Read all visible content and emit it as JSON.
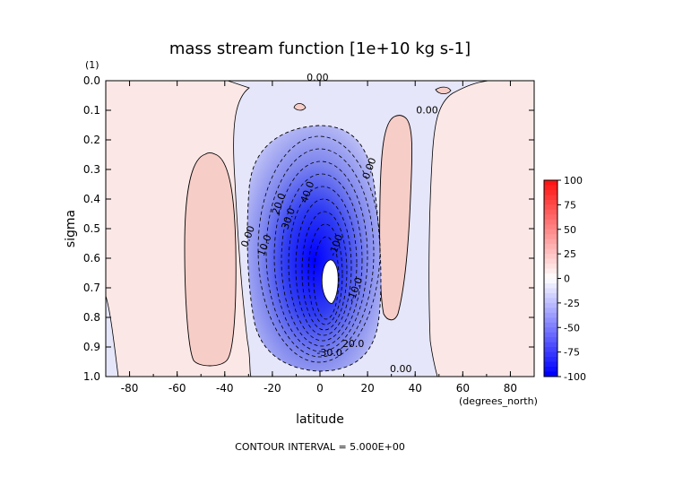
{
  "chart_data": {
    "type": "contour",
    "title": "mass stream function [1e+10 kg s-1]",
    "xlabel": "latitude",
    "xunits": "(degrees_north)",
    "ylabel": "sigma",
    "yunits": "(1)",
    "footer": "CONTOUR INTERVAL = 5.000E+00",
    "xlim": [
      -90,
      90
    ],
    "ylim": [
      1.0,
      0.0
    ],
    "y_inverted": true,
    "x_ticks": [
      -80,
      -60,
      -40,
      -20,
      0,
      20,
      40,
      60,
      80
    ],
    "x_tick_labels": [
      "-80",
      "-60",
      "-40",
      "-20",
      "0",
      "20",
      "40",
      "60",
      "80"
    ],
    "y_ticks": [
      0.0,
      0.1,
      0.2,
      0.3,
      0.4,
      0.5,
      0.6,
      0.7,
      0.8,
      0.9,
      1.0
    ],
    "y_tick_labels": [
      "0.0",
      "0.1",
      "0.2",
      "0.3",
      "0.4",
      "0.5",
      "0.6",
      "0.7",
      "0.8",
      "0.9",
      "1.0"
    ],
    "contour_interval": 5.0,
    "contour_labels": [
      {
        "text": "0.00",
        "lat": -1,
        "sigma": 0.0
      },
      {
        "text": "0.00",
        "lat": 45,
        "sigma": 0.11
      },
      {
        "text": "0.00",
        "lat": 22,
        "sigma": 0.3
      },
      {
        "text": "0.00",
        "lat": -29,
        "sigma": 0.53
      },
      {
        "text": "0.00",
        "lat": 34,
        "sigma": 0.985
      },
      {
        "text": "10.0",
        "lat": -22,
        "sigma": 0.56
      },
      {
        "text": "20.0",
        "lat": -16,
        "sigma": 0.42
      },
      {
        "text": "30.0",
        "lat": -12,
        "sigma": 0.47
      },
      {
        "text": "40.0",
        "lat": -4,
        "sigma": 0.38
      },
      {
        "text": "-10.0",
        "lat": 16,
        "sigma": 0.71
      },
      {
        "text": "20.0",
        "lat": 14,
        "sigma": 0.9
      },
      {
        "text": "-30.0",
        "lat": 4,
        "sigma": 0.93
      },
      {
        "text": "-100",
        "lat": 8,
        "sigma": 0.56
      }
    ],
    "colorbar": {
      "ticks": [
        100,
        75,
        50,
        25,
        0,
        -25,
        -50,
        -75,
        -100
      ],
      "tick_labels": [
        "100",
        "75",
        "50",
        "25",
        "0",
        "-25",
        "-50",
        "-75",
        "-100"
      ],
      "range": [
        -100,
        100
      ]
    },
    "regions": [
      {
        "sign": "positive",
        "desc": "weak positive cell",
        "lat_range": [
          -58,
          -36
        ],
        "sigma_range": [
          0.25,
          0.96
        ]
      },
      {
        "sign": "positive",
        "desc": "weak positive cell",
        "lat_range": [
          20,
          32
        ],
        "sigma_range": [
          0.12,
          0.8
        ]
      },
      {
        "sign": "negative",
        "desc": "strong negative cell",
        "lat_range": [
          -25,
          22
        ],
        "sigma_range": [
          0.15,
          1.0
        ],
        "min_value": -100,
        "center_lat": 3,
        "center_sigma": 0.65
      }
    ]
  }
}
